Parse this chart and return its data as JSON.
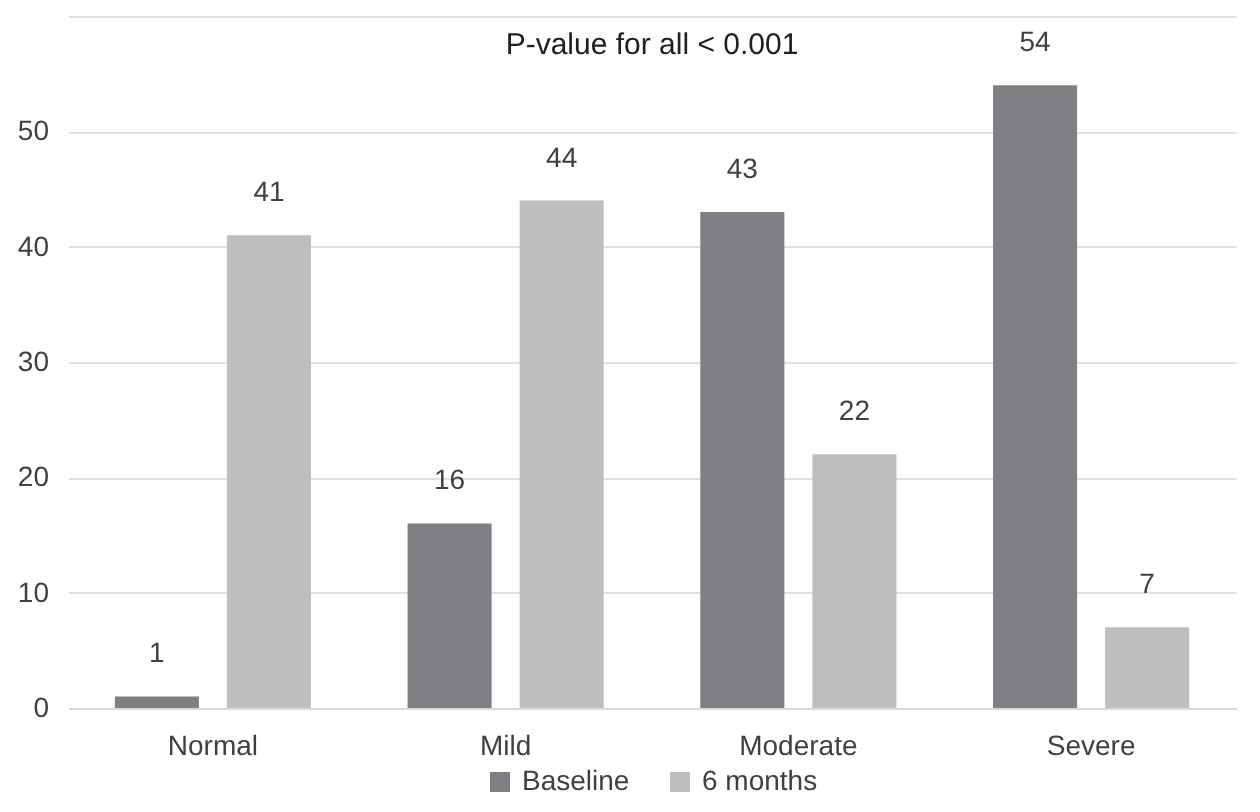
{
  "chart_data": {
    "type": "bar",
    "title": "P-value for all < 0.001",
    "categories": [
      "Normal",
      "Mild",
      "Moderate",
      "Severe"
    ],
    "series": [
      {
        "name": "Baseline",
        "color": "#7f8084",
        "values": [
          1,
          16,
          43,
          54
        ]
      },
      {
        "name": "6 months",
        "color": "#bdbec0",
        "values": [
          41,
          44,
          22,
          7
        ]
      }
    ],
    "ylim": [
      0,
      60
    ],
    "yticks": [
      0,
      10,
      20,
      30,
      40,
      50,
      {
        "value": 60,
        "label": null
      }
    ],
    "grid": "y",
    "legend": "bottom",
    "data_labels": true
  }
}
